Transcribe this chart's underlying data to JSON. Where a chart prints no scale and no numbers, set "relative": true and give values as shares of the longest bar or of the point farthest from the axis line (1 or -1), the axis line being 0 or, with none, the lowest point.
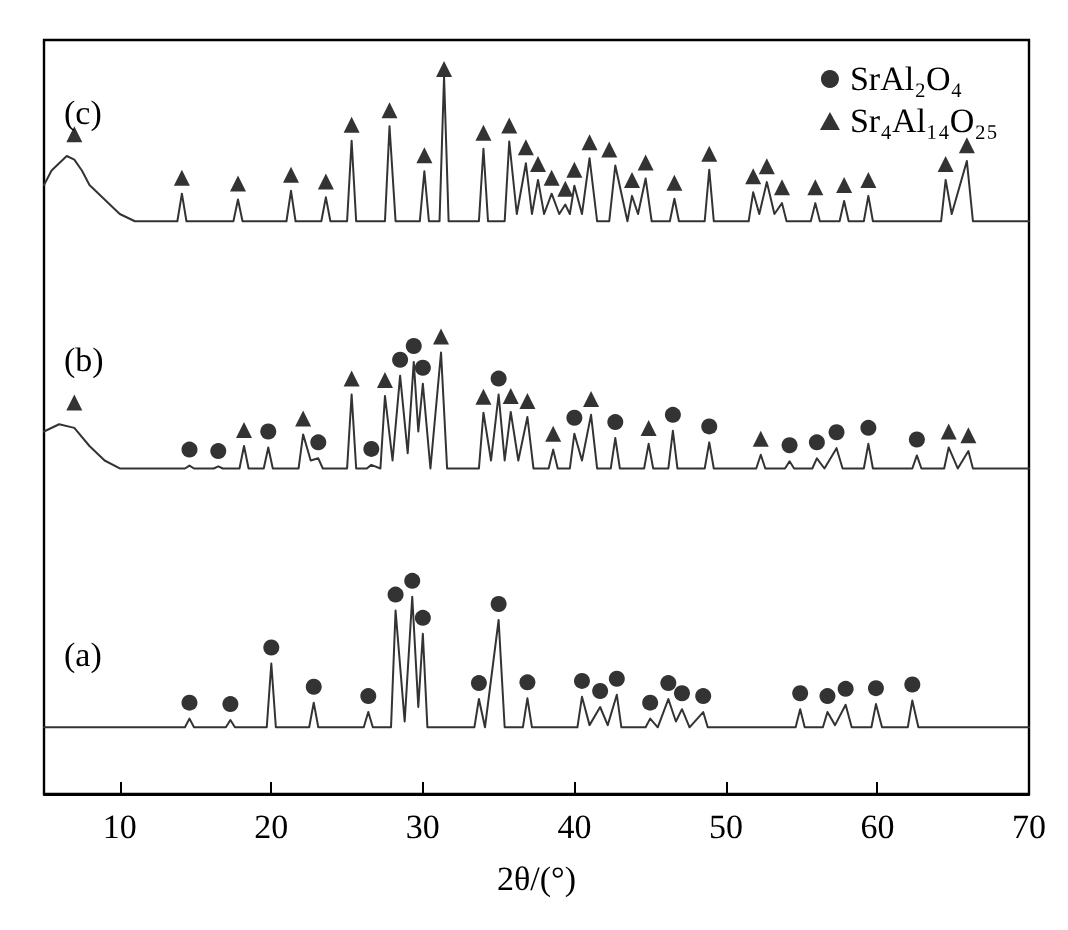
{
  "chart_data": {
    "type": "line",
    "relative": true,
    "xlabel": "2θ/(°)",
    "xlim": [
      5,
      70
    ],
    "xticks": [
      10,
      20,
      30,
      40,
      50,
      60,
      70
    ],
    "legend": "top right",
    "grid": false,
    "annotations": [
      "(a)",
      "(b)",
      "(c)"
    ],
    "series": [
      {
        "color": "#333333",
        "marker": "none",
        "x": [
          5,
          10,
          14.3,
          14.6,
          14.9,
          17.0,
          17.3,
          17.6,
          19.7,
          20.0,
          20.3,
          22.5,
          22.8,
          23.1,
          26.1,
          26.4,
          26.7,
          27.9,
          28.2,
          28.8,
          29.3,
          29.7,
          30.0,
          30.3,
          33.4,
          33.7,
          34.1,
          35.0,
          35.4,
          36.6,
          36.9,
          37.2,
          40.2,
          40.5,
          41.0,
          41.7,
          42.2,
          42.8,
          43.1,
          44.7,
          45.0,
          45.5,
          46.2,
          46.7,
          47.1,
          47.6,
          48.5,
          48.8,
          54.6,
          54.9,
          55.2,
          56.4,
          56.7,
          57.2,
          57.9,
          58.3,
          59.6,
          59.9,
          60.3,
          62.0,
          62.3,
          62.7,
          70
        ],
        "values": [
          0.092,
          0.092,
          0.092,
          0.104,
          0.092,
          0.092,
          0.102,
          0.092,
          0.092,
          0.18,
          0.092,
          0.092,
          0.126,
          0.092,
          0.092,
          0.113,
          0.092,
          0.092,
          0.253,
          0.1,
          0.272,
          0.12,
          0.221,
          0.092,
          0.092,
          0.131,
          0.092,
          0.24,
          0.092,
          0.092,
          0.132,
          0.092,
          0.092,
          0.134,
          0.095,
          0.12,
          0.095,
          0.137,
          0.092,
          0.092,
          0.104,
          0.092,
          0.131,
          0.1,
          0.117,
          0.092,
          0.113,
          0.092,
          0.092,
          0.117,
          0.092,
          0.092,
          0.113,
          0.095,
          0.123,
          0.092,
          0.092,
          0.124,
          0.092,
          0.092,
          0.129,
          0.092,
          0.092
        ]
      },
      {
        "color": "#333333",
        "marker": "none",
        "x": [
          5,
          6,
          7,
          8,
          9,
          10,
          14.3,
          14.6,
          14.9,
          16.2,
          16.5,
          16.8,
          17.9,
          18.2,
          18.5,
          19.5,
          19.8,
          20.1,
          21.8,
          22.1,
          22.6,
          23.1,
          23.4,
          25.0,
          25.3,
          25.6,
          26.3,
          26.6,
          27.2,
          27.5,
          28.0,
          28.5,
          29.0,
          29.4,
          29.7,
          30.0,
          30.5,
          31.2,
          31.6,
          33.7,
          34.0,
          34.5,
          35.0,
          35.4,
          35.8,
          36.3,
          36.9,
          37.3,
          38.3,
          38.6,
          38.9,
          39.7,
          40.0,
          40.5,
          41.1,
          41.5,
          42.4,
          42.7,
          43.0,
          44.6,
          44.9,
          45.2,
          46.2,
          46.5,
          46.8,
          48.6,
          48.9,
          49.2,
          52.0,
          52.3,
          52.6,
          53.9,
          54.2,
          54.5,
          55.7,
          56.0,
          56.5,
          57.3,
          57.7,
          59.1,
          59.4,
          59.7,
          62.3,
          62.6,
          62.9,
          64.4,
          64.7,
          65.3,
          66.0,
          66.3,
          70
        ],
        "values": [
          0.5,
          0.51,
          0.505,
          0.48,
          0.46,
          0.449,
          0.449,
          0.453,
          0.449,
          0.449,
          0.452,
          0.449,
          0.449,
          0.48,
          0.449,
          0.449,
          0.478,
          0.449,
          0.449,
          0.496,
          0.46,
          0.463,
          0.449,
          0.449,
          0.551,
          0.449,
          0.449,
          0.454,
          0.449,
          0.549,
          0.46,
          0.577,
          0.47,
          0.596,
          0.5,
          0.566,
          0.449,
          0.609,
          0.449,
          0.449,
          0.526,
          0.46,
          0.551,
          0.46,
          0.527,
          0.46,
          0.52,
          0.449,
          0.449,
          0.475,
          0.449,
          0.449,
          0.497,
          0.46,
          0.523,
          0.449,
          0.449,
          0.491,
          0.449,
          0.449,
          0.483,
          0.449,
          0.449,
          0.501,
          0.449,
          0.449,
          0.485,
          0.449,
          0.449,
          0.468,
          0.449,
          0.449,
          0.459,
          0.449,
          0.449,
          0.463,
          0.449,
          0.477,
          0.449,
          0.449,
          0.483,
          0.449,
          0.449,
          0.467,
          0.449,
          0.449,
          0.478,
          0.449,
          0.473,
          0.449,
          0.449
        ]
      },
      {
        "color": "#333333",
        "marker": "none",
        "x": [
          5,
          5.5,
          6,
          6.5,
          7,
          7.5,
          8,
          9,
          10,
          11,
          13.8,
          14.1,
          14.4,
          17.5,
          17.8,
          18.1,
          21.0,
          21.3,
          21.6,
          23.3,
          23.6,
          23.9,
          25.0,
          25.3,
          25.6,
          27.5,
          27.8,
          28.2,
          29.8,
          30.1,
          30.4,
          31.1,
          31.4,
          31.7,
          33.7,
          34.0,
          34.3,
          35.4,
          35.7,
          36.2,
          36.8,
          37.2,
          37.6,
          38.0,
          38.5,
          39.0,
          39.4,
          39.7,
          40.0,
          40.5,
          41.0,
          41.5,
          42.3,
          42.7,
          43.5,
          43.8,
          44.2,
          44.7,
          45.1,
          46.3,
          46.6,
          46.9,
          48.6,
          48.9,
          49.2,
          51.5,
          51.8,
          52.2,
          52.7,
          53.2,
          53.7,
          54.0,
          55.6,
          55.9,
          56.2,
          57.5,
          57.8,
          58.1,
          59.1,
          59.4,
          59.7,
          64.2,
          64.5,
          64.9,
          65.9,
          66.3,
          70
        ],
        "values": [
          0.84,
          0.86,
          0.87,
          0.88,
          0.875,
          0.86,
          0.84,
          0.82,
          0.8,
          0.79,
          0.79,
          0.828,
          0.79,
          0.79,
          0.82,
          0.79,
          0.79,
          0.832,
          0.79,
          0.79,
          0.823,
          0.79,
          0.79,
          0.901,
          0.79,
          0.79,
          0.921,
          0.79,
          0.79,
          0.859,
          0.79,
          0.79,
          0.99,
          0.79,
          0.79,
          0.89,
          0.79,
          0.79,
          0.9,
          0.8,
          0.87,
          0.8,
          0.847,
          0.8,
          0.828,
          0.8,
          0.813,
          0.8,
          0.839,
          0.8,
          0.877,
          0.79,
          0.79,
          0.867,
          0.79,
          0.825,
          0.8,
          0.849,
          0.79,
          0.79,
          0.821,
          0.79,
          0.79,
          0.861,
          0.79,
          0.79,
          0.83,
          0.8,
          0.844,
          0.8,
          0.815,
          0.79,
          0.79,
          0.815,
          0.79,
          0.79,
          0.818,
          0.79,
          0.79,
          0.825,
          0.79,
          0.79,
          0.847,
          0.8,
          0.873,
          0.79,
          0.79
        ]
      },
      {
        "type": "scatter",
        "name": "SrAl₂O₄",
        "color": "#000000",
        "marker": "circle",
        "x": [
          14.6,
          17.3,
          20.0,
          22.8,
          26.4,
          28.2,
          29.3,
          30.0,
          33.7,
          35.0,
          36.9,
          40.5,
          41.7,
          42.8,
          45.0,
          46.2,
          47.1,
          48.5,
          54.9,
          56.7,
          57.9,
          59.9,
          62.3,
          14.6,
          16.5,
          19.8,
          23.1,
          26.6,
          28.5,
          29.4,
          30.0,
          35.0,
          40.0,
          42.7,
          46.5,
          48.9,
          54.2,
          56.0,
          57.3,
          59.4,
          62.6
        ],
        "values": [
          0.126,
          0.124,
          0.202,
          0.148,
          0.135,
          0.275,
          0.294,
          0.243,
          0.153,
          0.262,
          0.154,
          0.156,
          0.142,
          0.159,
          0.126,
          0.153,
          0.139,
          0.135,
          0.139,
          0.135,
          0.145,
          0.146,
          0.151,
          0.475,
          0.473,
          0.5,
          0.485,
          0.476,
          0.599,
          0.618,
          0.588,
          0.573,
          0.519,
          0.513,
          0.523,
          0.507,
          0.481,
          0.485,
          0.499,
          0.505,
          0.489
        ]
      },
      {
        "type": "scatter",
        "name": "Sr₄Al₁₄O₂₅",
        "color": "#000000",
        "marker": "triangle",
        "x": [
          7.0,
          18.2,
          22.1,
          25.3,
          27.5,
          31.2,
          34.0,
          35.8,
          36.9,
          38.6,
          41.1,
          44.9,
          52.3,
          64.7,
          66.0,
          7.0,
          14.1,
          17.8,
          21.3,
          23.6,
          25.3,
          27.8,
          30.1,
          31.4,
          34.0,
          35.7,
          36.8,
          37.6,
          38.5,
          39.4,
          40.0,
          41.0,
          42.3,
          43.8,
          44.7,
          46.6,
          48.9,
          51.8,
          52.7,
          53.7,
          55.9,
          57.8,
          59.4,
          64.5,
          65.9
        ],
        "values": [
          0.54,
          0.502,
          0.518,
          0.573,
          0.571,
          0.631,
          0.548,
          0.549,
          0.542,
          0.497,
          0.545,
          0.505,
          0.49,
          0.5,
          0.495,
          0.91,
          0.85,
          0.842,
          0.854,
          0.845,
          0.923,
          0.943,
          0.881,
          1.0,
          0.912,
          0.922,
          0.892,
          0.869,
          0.85,
          0.835,
          0.861,
          0.899,
          0.889,
          0.847,
          0.871,
          0.843,
          0.883,
          0.852,
          0.866,
          0.837,
          0.837,
          0.84,
          0.847,
          0.869,
          0.895
        ]
      }
    ]
  }
}
